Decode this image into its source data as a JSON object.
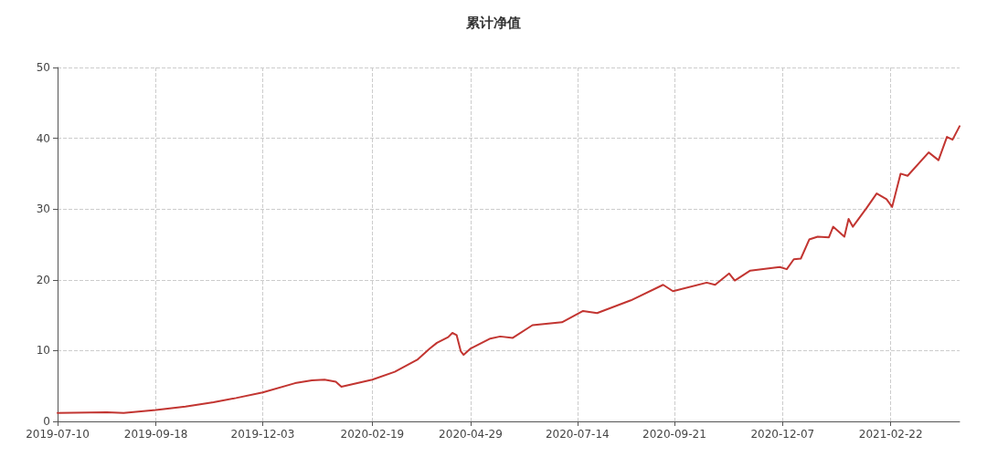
{
  "chart_data": {
    "type": "line",
    "title": "累计净值",
    "x": [
      "2019-07-10",
      "2019-08-14",
      "2019-08-26",
      "2019-09-18",
      "2019-10-09",
      "2019-10-29",
      "2019-11-14",
      "2019-12-03",
      "2019-12-26",
      "2020-01-07",
      "2020-01-16",
      "2020-01-24",
      "2020-01-28",
      "2020-02-19",
      "2020-03-06",
      "2020-03-22",
      "2020-03-31",
      "2020-04-05",
      "2020-04-13",
      "2020-04-16",
      "2020-04-19",
      "2020-04-22",
      "2020-04-24",
      "2020-04-29",
      "2020-05-13",
      "2020-05-20",
      "2020-05-29",
      "2020-06-12",
      "2020-07-03",
      "2020-07-18",
      "2020-07-28",
      "2020-08-21",
      "2020-09-13",
      "2020-09-20",
      "2020-10-14",
      "2020-10-20",
      "2020-10-30",
      "2020-11-03",
      "2020-11-14",
      "2020-12-05",
      "2020-12-10",
      "2020-12-15",
      "2020-12-20",
      "2020-12-26",
      "2021-01-01",
      "2021-01-09",
      "2021-01-12",
      "2021-01-20",
      "2021-01-23",
      "2021-01-26",
      "2021-02-05",
      "2021-02-12",
      "2021-02-19",
      "2021-02-23",
      "2021-03-01",
      "2021-03-06",
      "2021-03-21",
      "2021-03-28",
      "2021-04-03",
      "2021-04-07",
      "2021-04-12"
    ],
    "series": [
      {
        "color": "#c23531",
        "values": [
          1.2,
          1.3,
          1.2,
          1.6,
          2.1,
          2.7,
          3.3,
          4.1,
          5.4,
          5.8,
          5.9,
          5.6,
          4.9,
          5.9,
          7.0,
          8.7,
          10.3,
          11.1,
          11.9,
          12.5,
          12.2,
          9.9,
          9.4,
          10.3,
          11.7,
          12.0,
          11.8,
          13.6,
          14.0,
          15.6,
          15.3,
          17.1,
          19.3,
          18.4,
          19.6,
          19.3,
          20.9,
          19.9,
          21.3,
          21.8,
          21.5,
          22.9,
          23.0,
          25.7,
          26.1,
          26.0,
          27.5,
          26.1,
          28.6,
          27.5,
          30.2,
          32.2,
          31.4,
          30.3,
          35.0,
          34.7,
          38.0,
          36.9,
          40.2,
          39.8,
          41.7
        ]
      }
    ],
    "xlim": [
      "2019-07-10",
      "2021-04-12"
    ],
    "xticks": [
      "2019-07-10",
      "2019-09-18",
      "2019-12-03",
      "2020-02-19",
      "2020-04-29",
      "2020-07-14",
      "2020-09-21",
      "2020-12-07",
      "2021-02-22"
    ],
    "ylim": [
      0,
      50
    ],
    "yticks": [
      0,
      10,
      20,
      30,
      40,
      50
    ],
    "grid": true,
    "line_style": "solid",
    "marker": "none"
  }
}
